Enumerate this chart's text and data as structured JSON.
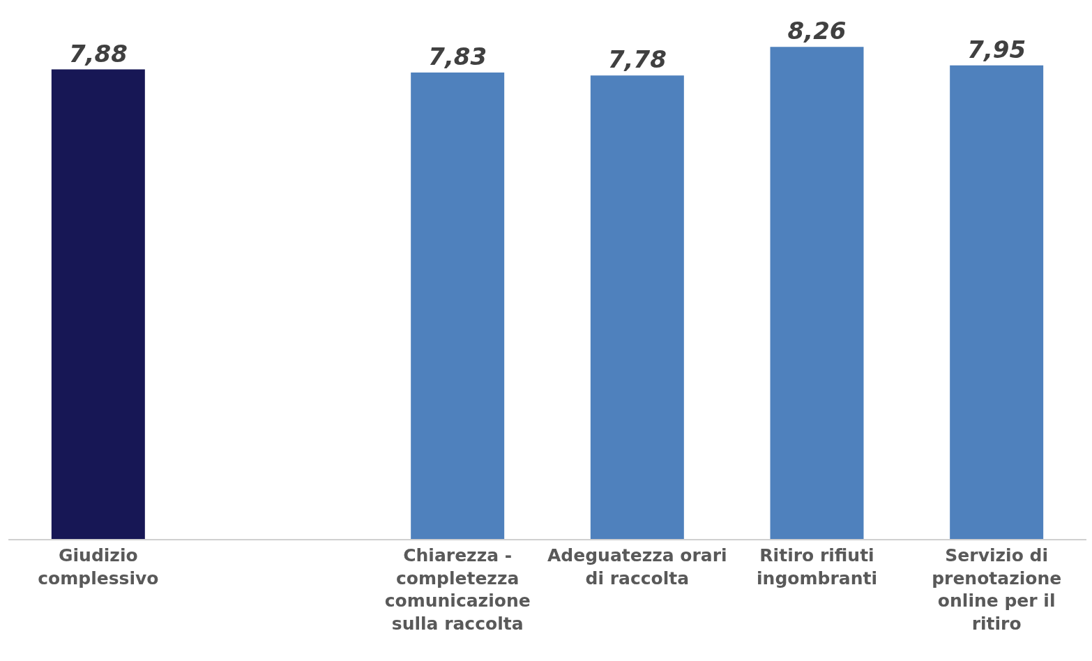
{
  "chart_data": {
    "type": "bar",
    "categories": [
      "Giudizio complessivo",
      null,
      "Chiarezza - completezza comunicazione sulla raccolta",
      "Adeguatezza orari di raccolta",
      "Ritiro rifiuti ingombranti",
      "Servizio di prenotazione online per il ritiro"
    ],
    "values": [
      7.88,
      null,
      7.83,
      7.78,
      8.26,
      7.95
    ],
    "colors": [
      "#171755",
      "#4f81bd",
      "#4f81bd",
      "#4f81bd",
      "#4f81bd",
      "#4f81bd"
    ],
    "value_labels": [
      "7,88",
      null,
      "7,83",
      "7,78",
      "8,26",
      "7,95"
    ]
  }
}
